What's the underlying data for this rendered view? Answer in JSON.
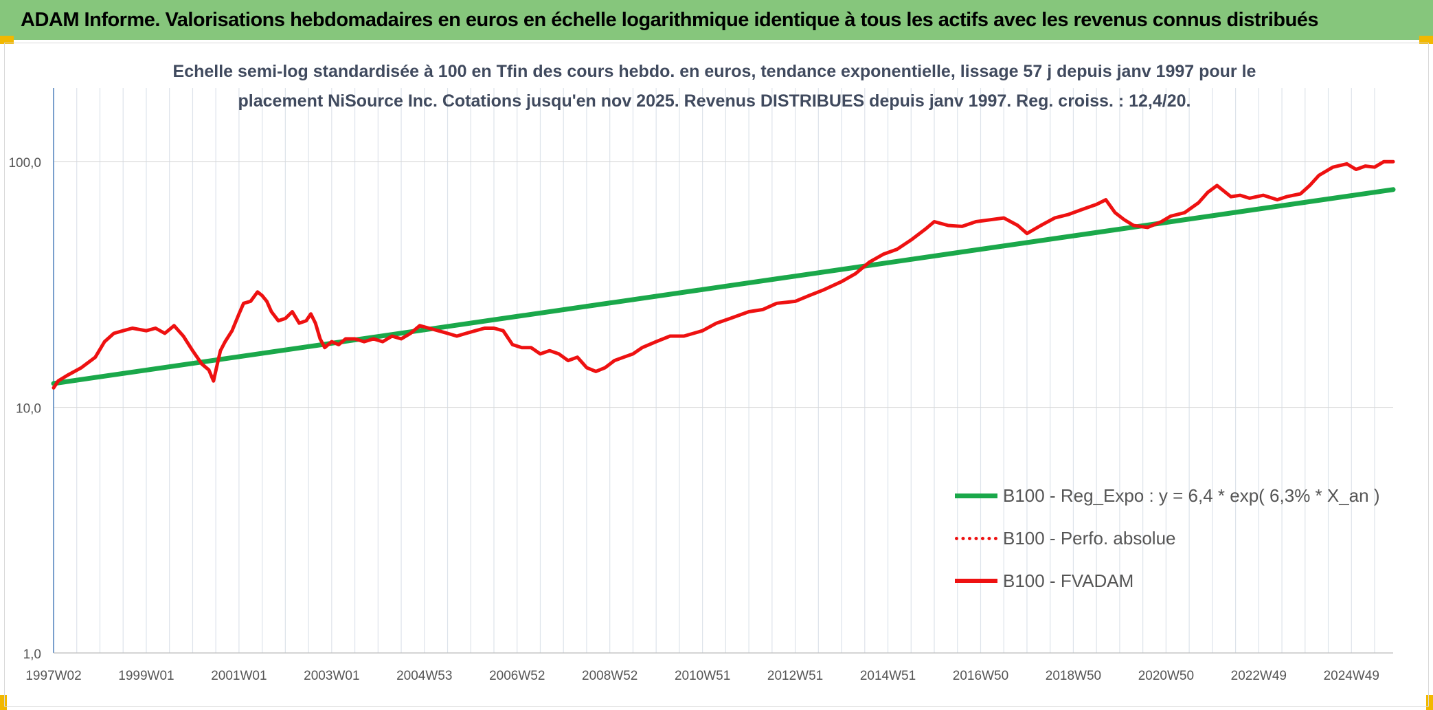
{
  "header": {
    "title": "ADAM Informe. Valorisations hebdomadaires en euros en échelle logarithmique identique à tous les actifs avec les revenus connus distribués"
  },
  "colors": {
    "header_bg": "#86c67c",
    "corner": "#f2b800",
    "trend": "#1aa84a",
    "series": "#ee1111",
    "grid": "#d9d9d9",
    "axis": "#4f81bd"
  },
  "chart_data": {
    "type": "line",
    "title_line1": "Echelle semi-log standardisée à 100 en Tfin des cours hebdo. en euros, tendance exponentielle, lissage 57 j depuis janv 1997 pour le",
    "title_line2": "placement NiSource Inc. Cotations jusqu'en nov 2025. Revenus DISTRIBUES depuis janv 1997. Reg. croiss. : 12,4/20.",
    "y_scale": "log",
    "ylim": [
      1,
      200
    ],
    "y_ticks": [
      {
        "value": 1,
        "label": "1,0"
      },
      {
        "value": 10,
        "label": "10,0"
      },
      {
        "value": 100,
        "label": "100,0"
      }
    ],
    "xlim": [
      1997.0,
      2025.9
    ],
    "x_ticks": [
      {
        "value": 1997.0,
        "label": "1997W02"
      },
      {
        "value": 1999.0,
        "label": "1999W01"
      },
      {
        "value": 2001.0,
        "label": "2001W01"
      },
      {
        "value": 2003.0,
        "label": "2003W01"
      },
      {
        "value": 2005.0,
        "label": "2004W53"
      },
      {
        "value": 2007.0,
        "label": "2006W52"
      },
      {
        "value": 2009.0,
        "label": "2008W52"
      },
      {
        "value": 2011.0,
        "label": "2010W51"
      },
      {
        "value": 2013.0,
        "label": "2012W51"
      },
      {
        "value": 2015.0,
        "label": "2014W51"
      },
      {
        "value": 2017.0,
        "label": "2016W50"
      },
      {
        "value": 2019.0,
        "label": "2018W50"
      },
      {
        "value": 2021.0,
        "label": "2020W50"
      },
      {
        "value": 2023.0,
        "label": "2022W49"
      },
      {
        "value": 2025.0,
        "label": "2024W49"
      }
    ],
    "legend_position": "right",
    "series": [
      {
        "name": "B100 - Reg_Expo : y = 6,4 * exp( 6,3% *  X_an )",
        "style": "solid-thick",
        "color": "#1aa84a",
        "x": [
          1997.0,
          2025.9
        ],
        "values": [
          12.5,
          77
        ]
      },
      {
        "name": "B100 - Perfo. absolue",
        "style": "dotted",
        "color": "#ee1111",
        "x": [],
        "values": []
      },
      {
        "name": "B100 - FVADAM",
        "style": "solid",
        "color": "#ee1111",
        "x": [
          1997.0,
          1997.1,
          1997.3,
          1997.6,
          1997.9,
          1998.1,
          1998.3,
          1998.5,
          1998.7,
          1999.0,
          1999.2,
          1999.4,
          1999.6,
          1999.8,
          2000.0,
          2000.2,
          2000.35,
          2000.45,
          2000.55,
          2000.6,
          2000.7,
          2000.85,
          2001.0,
          2001.1,
          2001.25,
          2001.4,
          2001.5,
          2001.6,
          2001.7,
          2001.85,
          2002.0,
          2002.15,
          2002.3,
          2002.45,
          2002.55,
          2002.65,
          2002.75,
          2002.85,
          2003.0,
          2003.15,
          2003.3,
          2003.5,
          2003.7,
          2003.9,
          2004.1,
          2004.3,
          2004.5,
          2004.7,
          2004.9,
          2005.1,
          2005.3,
          2005.5,
          2005.7,
          2005.9,
          2006.1,
          2006.3,
          2006.5,
          2006.7,
          2006.9,
          2007.1,
          2007.3,
          2007.5,
          2007.7,
          2007.9,
          2008.1,
          2008.3,
          2008.5,
          2008.7,
          2008.9,
          2009.1,
          2009.3,
          2009.5,
          2009.7,
          2010.0,
          2010.3,
          2010.6,
          2011.0,
          2011.3,
          2011.6,
          2012.0,
          2012.3,
          2012.6,
          2013.0,
          2013.3,
          2013.6,
          2014.0,
          2014.3,
          2014.6,
          2014.9,
          2015.2,
          2015.5,
          2015.8,
          2016.0,
          2016.3,
          2016.6,
          2016.9,
          2017.2,
          2017.5,
          2017.8,
          2018.0,
          2018.3,
          2018.6,
          2018.9,
          2019.2,
          2019.5,
          2019.7,
          2019.9,
          2020.1,
          2020.3,
          2020.6,
          2020.9,
          2021.1,
          2021.4,
          2021.7,
          2021.9,
          2022.1,
          2022.4,
          2022.6,
          2022.8,
          2023.1,
          2023.4,
          2023.6,
          2023.9,
          2024.1,
          2024.3,
          2024.6,
          2024.9,
          2025.1,
          2025.3,
          2025.5,
          2025.7,
          2025.9
        ],
        "values": [
          12.0,
          12.8,
          13.5,
          14.5,
          16.0,
          18.5,
          20.0,
          20.5,
          21.0,
          20.5,
          21.0,
          20.0,
          21.5,
          19.5,
          17.0,
          15.0,
          14.2,
          12.8,
          15.5,
          17.0,
          18.5,
          20.5,
          24.0,
          26.5,
          27.0,
          29.5,
          28.5,
          27.0,
          24.5,
          22.5,
          23.0,
          24.5,
          22.0,
          22.5,
          24.0,
          22.0,
          19.0,
          17.5,
          18.5,
          18.0,
          19.0,
          19.0,
          18.5,
          19.0,
          18.5,
          19.5,
          19.0,
          20.0,
          21.5,
          21.0,
          20.5,
          20.0,
          19.5,
          20.0,
          20.5,
          21.0,
          21.0,
          20.5,
          18.0,
          17.5,
          17.5,
          16.5,
          17.0,
          16.5,
          15.5,
          16.0,
          14.5,
          14.0,
          14.5,
          15.5,
          16.0,
          16.5,
          17.5,
          18.5,
          19.5,
          19.5,
          20.5,
          22.0,
          23.0,
          24.5,
          25.0,
          26.5,
          27.0,
          28.5,
          30.0,
          32.5,
          35.0,
          39.0,
          42.0,
          44.0,
          48.0,
          53.0,
          57.0,
          55.0,
          54.5,
          57.0,
          58.0,
          59.0,
          55.0,
          51.0,
          55.0,
          59.0,
          61.0,
          64.0,
          67.0,
          70.0,
          62.0,
          58.0,
          55.0,
          54.0,
          57.0,
          60.0,
          62.0,
          68.0,
          75.0,
          80.0,
          72.0,
          73.0,
          71.0,
          73.0,
          70.0,
          72.0,
          74.0,
          80.0,
          88.0,
          95.0,
          98.0,
          93.0,
          96.0,
          95.0,
          100.0,
          100.0
        ]
      }
    ]
  }
}
